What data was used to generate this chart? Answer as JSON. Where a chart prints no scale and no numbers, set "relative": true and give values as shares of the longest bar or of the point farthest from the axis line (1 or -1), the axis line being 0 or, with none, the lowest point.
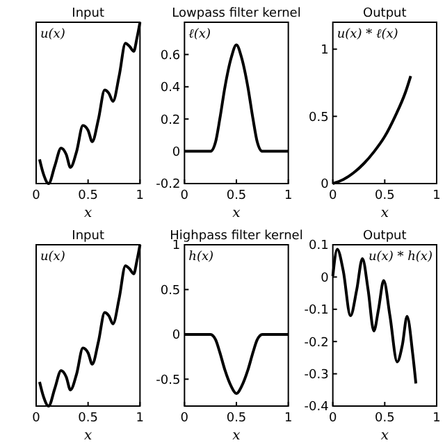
{
  "chart_data": [
    {
      "type": "line",
      "title": "Input",
      "xlabel": "x",
      "relative": true,
      "tick_labels": "x",
      "legend": "top left",
      "xlim": [
        0,
        1
      ],
      "xticks": [
        0,
        0.5,
        1
      ],
      "x": [
        0.033,
        0.07,
        0.12,
        0.18,
        0.24,
        0.29,
        0.33,
        0.39,
        0.45,
        0.5,
        0.54,
        0.6,
        0.66,
        0.7,
        0.74,
        0.8,
        0.86,
        0.9,
        0.94,
        0.97,
        1.0
      ],
      "series": [
        {
          "name": "u(x)",
          "color": "#000000",
          "values": [
            0.15,
            0.06,
            0,
            0.11,
            0.22,
            0.18,
            0.1,
            0.2,
            0.36,
            0.33,
            0.26,
            0.4,
            0.58,
            0.56,
            0.51,
            0.67,
            0.87,
            0.85,
            0.82,
            0.9,
            1
          ]
        }
      ]
    },
    {
      "type": "line",
      "title": "Lowpass filter kernel",
      "xlabel": "x",
      "legend": "top left",
      "xlim": [
        0,
        1
      ],
      "ylim": [
        -0.2,
        0.8
      ],
      "xticks": [
        0,
        0.5,
        1
      ],
      "yticks": [
        -0.2,
        0,
        0.2,
        0.4,
        0.6
      ],
      "x": [
        0,
        0.1,
        0.2,
        0.25,
        0.3,
        0.34,
        0.39,
        0.45,
        0.5,
        0.55,
        0.61,
        0.66,
        0.7,
        0.75,
        0.8,
        0.9,
        1
      ],
      "series": [
        {
          "name": "ℓ(x)",
          "color": "#000000",
          "values": [
            0,
            0,
            0,
            0,
            0.06,
            0.2,
            0.4,
            0.58,
            0.66,
            0.58,
            0.4,
            0.2,
            0.06,
            0,
            0,
            0,
            0
          ]
        }
      ]
    },
    {
      "type": "line",
      "title": "Output",
      "xlabel": "x",
      "legend": "top left",
      "xlim": [
        0,
        1
      ],
      "ylim": [
        0,
        1.2
      ],
      "xticks": [
        0,
        0.5,
        1
      ],
      "yticks": [
        0,
        0.5,
        1
      ],
      "x": [
        0,
        0.1,
        0.2,
        0.3,
        0.4,
        0.5,
        0.6,
        0.7,
        0.75
      ],
      "series": [
        {
          "name": "u(x) * ℓ(x)",
          "color": "#000000",
          "values": [
            0,
            0.03,
            0.08,
            0.15,
            0.24,
            0.35,
            0.5,
            0.68,
            0.8
          ]
        }
      ]
    },
    {
      "type": "line",
      "title": "Input",
      "xlabel": "x",
      "relative": true,
      "tick_labels": "x",
      "legend": "top left",
      "xlim": [
        0,
        1
      ],
      "xticks": [
        0,
        0.5,
        1
      ],
      "x": [
        0.033,
        0.07,
        0.12,
        0.18,
        0.24,
        0.29,
        0.33,
        0.39,
        0.45,
        0.5,
        0.54,
        0.6,
        0.66,
        0.7,
        0.74,
        0.8,
        0.86,
        0.9,
        0.94,
        0.97,
        1.0
      ],
      "series": [
        {
          "name": "u(x)",
          "color": "#000000",
          "values": [
            0.15,
            0.06,
            0,
            0.11,
            0.22,
            0.18,
            0.1,
            0.2,
            0.36,
            0.33,
            0.26,
            0.4,
            0.58,
            0.56,
            0.51,
            0.67,
            0.87,
            0.85,
            0.82,
            0.9,
            1
          ]
        }
      ]
    },
    {
      "type": "line",
      "title": "Highpass filter kernel",
      "xlabel": "x",
      "legend": "top left",
      "xlim": [
        0,
        1
      ],
      "ylim": [
        -0.8,
        1
      ],
      "xticks": [
        0,
        0.5,
        1
      ],
      "yticks": [
        -0.5,
        0,
        0.5,
        1
      ],
      "x": [
        0,
        0.1,
        0.2,
        0.25,
        0.3,
        0.34,
        0.39,
        0.45,
        0.5,
        0.55,
        0.61,
        0.66,
        0.7,
        0.75,
        0.8,
        0.9,
        1
      ],
      "series": [
        {
          "name": "h(x)",
          "color": "#000000",
          "values": [
            0,
            0,
            0,
            0,
            -0.06,
            -0.2,
            -0.4,
            -0.58,
            -0.66,
            -0.58,
            -0.4,
            -0.2,
            -0.06,
            0,
            0,
            0,
            0
          ]
        }
      ]
    },
    {
      "type": "line",
      "title": "Output",
      "xlabel": "x",
      "legend": "top right",
      "xlim": [
        0,
        1
      ],
      "ylim": [
        -0.4,
        0.1
      ],
      "xticks": [
        0,
        0.5,
        1
      ],
      "yticks": [
        -0.4,
        -0.3,
        -0.2,
        -0.1,
        0,
        0.1
      ],
      "x": [
        0,
        0.043,
        0.1,
        0.17,
        0.23,
        0.285,
        0.34,
        0.395,
        0.44,
        0.49,
        0.55,
        0.62,
        0.67,
        0.715,
        0.77,
        0.8
      ],
      "series": [
        {
          "name": "u(x) * h(x)",
          "color": "#000000",
          "values": [
            0.003,
            0.086,
            0.02,
            -0.12,
            -0.04,
            0.057,
            -0.04,
            -0.167,
            -0.1,
            -0.011,
            -0.12,
            -0.263,
            -0.21,
            -0.122,
            -0.24,
            -0.33
          ]
        }
      ]
    }
  ]
}
